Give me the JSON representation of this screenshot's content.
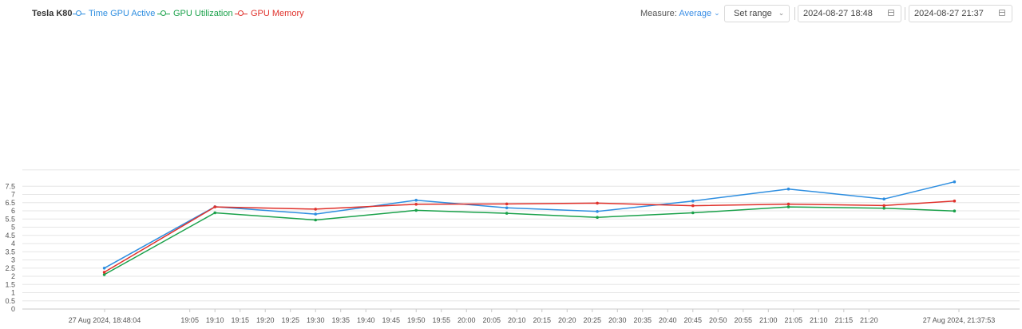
{
  "header": {
    "gpu_name": "Tesla K80",
    "legend": [
      {
        "label": "Time GPU Active",
        "color": "#2e8ee0"
      },
      {
        "label": "GPU Utilization",
        "color": "#1aa14a"
      },
      {
        "label": "GPU Memory",
        "color": "#e0312b"
      }
    ],
    "measure_label": "Measure:",
    "measure_value": "Average",
    "range_button": "Set range",
    "start_date": "2024-08-27 18:48",
    "end_date": "2024-08-27 21:37",
    "calendar_icon": "calendar-icon",
    "chevron_icon": "chevron-down-icon"
  },
  "chart_data": {
    "type": "line",
    "title": "",
    "xlabel": "",
    "ylabel": "",
    "ylim": [
      0,
      8.5
    ],
    "y_ticks": [
      "0",
      "0.5",
      "1",
      "1.5",
      "2",
      "2.5",
      "3",
      "3.5",
      "4",
      "4.5",
      "5",
      "5.5",
      "6",
      "6.5",
      "7",
      "7.5"
    ],
    "grid": true,
    "x_ticks": [
      "27 Aug 2024, 18:48:04",
      "19:05",
      "19:10",
      "19:15",
      "19:20",
      "19:25",
      "19:30",
      "19:35",
      "19:40",
      "19:45",
      "19:50",
      "19:55",
      "20:00",
      "20:05",
      "20:10",
      "20:15",
      "20:20",
      "20:25",
      "20:30",
      "20:35",
      "20:40",
      "20:45",
      "20:50",
      "20:55",
      "21:00",
      "21:05",
      "21:10",
      "21:15",
      "21:20",
      "27 Aug 2024, 21:37:53"
    ],
    "x": [
      "18:48",
      "19:10",
      "19:30",
      "19:50",
      "20:08",
      "20:26",
      "20:45",
      "21:04",
      "21:23",
      "21:37"
    ],
    "series": [
      {
        "name": "Time GPU Active",
        "color": "#2e8ee0",
        "values": [
          2.5,
          6.25,
          5.8,
          6.65,
          6.18,
          5.96,
          6.6,
          7.33,
          6.72,
          7.77
        ]
      },
      {
        "name": "GPU Utilization",
        "color": "#1aa14a",
        "values": [
          2.1,
          5.88,
          5.44,
          6.03,
          5.85,
          5.6,
          5.88,
          6.24,
          6.16,
          5.99
        ]
      },
      {
        "name": "GPU Memory",
        "color": "#e0312b",
        "values": [
          2.25,
          6.24,
          6.1,
          6.4,
          6.42,
          6.47,
          6.31,
          6.41,
          6.32,
          6.6
        ]
      }
    ]
  }
}
